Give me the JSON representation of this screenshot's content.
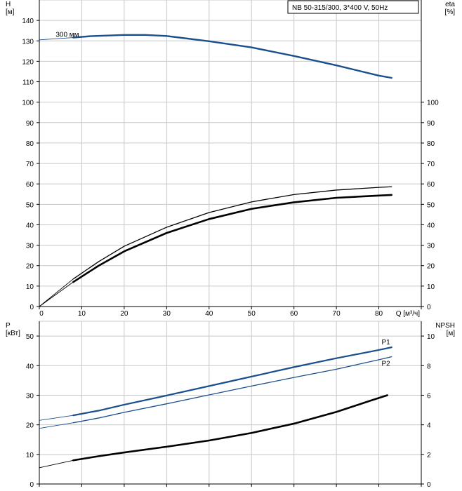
{
  "chart_data": [
    {
      "type": "line",
      "panel": "top",
      "title": "NB 50-315/300, 3*400 V, 50Hz",
      "xlabel": "Q [м³/ч]",
      "ylabel_left": "H\n[м]",
      "ylabel_right": "eta\n[%]",
      "xlim": [
        0,
        90
      ],
      "ylim_left": [
        0,
        150
      ],
      "ylim_right": [
        0,
        150
      ],
      "x_ticks": [
        0,
        10,
        20,
        30,
        40,
        50,
        60,
        70,
        80
      ],
      "y_left_ticks": [
        0,
        10,
        20,
        30,
        40,
        50,
        60,
        70,
        80,
        90,
        100,
        110,
        120,
        130,
        140
      ],
      "y_right_ticks": [
        0,
        10,
        20,
        30,
        40,
        50,
        60,
        70,
        80,
        90,
        100
      ],
      "grid": true,
      "annotations": [
        {
          "text": "300 мм",
          "x": 8,
          "y": 133
        }
      ],
      "series": [
        {
          "role": "head",
          "axis": "left",
          "color": "#1b4f8c",
          "width": 2.4,
          "x": [
            0,
            8,
            12,
            20,
            25,
            30,
            40,
            50,
            60,
            70,
            80,
            83
          ],
          "y": [
            130.5,
            131.6,
            132.3,
            132.9,
            132.9,
            132.4,
            129.8,
            126.8,
            122.6,
            118.0,
            113.0,
            111.9
          ],
          "thin_until": 8
        },
        {
          "role": "eta-thin",
          "axis": "right",
          "color": "#000000",
          "width": 1.3,
          "x": [
            0,
            8,
            14,
            20,
            30,
            40,
            50,
            60,
            70,
            80,
            83
          ],
          "y": [
            0,
            13.5,
            22,
            29.5,
            38.8,
            46,
            51.2,
            54.8,
            57,
            58.3,
            58.6
          ],
          "thin_until": 8
        },
        {
          "role": "eta-thick",
          "axis": "right",
          "color": "#000000",
          "width": 2.6,
          "x": [
            0,
            8,
            14,
            20,
            30,
            40,
            50,
            60,
            70,
            80,
            83
          ],
          "y": [
            0,
            12,
            20,
            27,
            36,
            42.8,
            47.8,
            51,
            53.2,
            54.3,
            54.6
          ],
          "thin_until": 8
        }
      ]
    },
    {
      "type": "line",
      "panel": "bottom",
      "ylabel_left": "P\n[кВт]",
      "ylabel_right": "NPSH\n[м]",
      "xlim": [
        0,
        90
      ],
      "ylim_left": [
        0,
        55
      ],
      "ylim_right": [
        0,
        11
      ],
      "y_left_ticks": [
        0,
        10,
        20,
        30,
        40,
        50
      ],
      "y_right_ticks": [
        0,
        2,
        4,
        6,
        8,
        10
      ],
      "grid": true,
      "series": [
        {
          "name": "P1",
          "axis": "left",
          "color": "#1b4f8c",
          "width": 2.2,
          "x": [
            0,
            8,
            14,
            20,
            30,
            40,
            50,
            60,
            70,
            80,
            83
          ],
          "y": [
            21.5,
            23.2,
            24.8,
            26.8,
            29.9,
            33.1,
            36.3,
            39.5,
            42.5,
            45.3,
            46.2
          ],
          "thin_until": 8
        },
        {
          "name": "P2",
          "axis": "left",
          "color": "#1b4f8c",
          "width": 1.3,
          "x": [
            0,
            8,
            14,
            20,
            30,
            40,
            50,
            60,
            70,
            80,
            83
          ],
          "y": [
            18.8,
            20.7,
            22.3,
            24.2,
            27.1,
            30.1,
            33.1,
            36.0,
            38.8,
            42.0,
            43.0
          ],
          "thin_until": 8
        },
        {
          "role": "npsh",
          "axis": "right",
          "color": "#000000",
          "width": 2.6,
          "x": [
            0,
            8,
            14,
            20,
            30,
            40,
            50,
            60,
            70,
            78,
            82
          ],
          "y": [
            1.1,
            1.6,
            1.88,
            2.13,
            2.52,
            2.94,
            3.45,
            4.08,
            4.87,
            5.63,
            6.0
          ],
          "thin_until": 8
        }
      ]
    }
  ]
}
